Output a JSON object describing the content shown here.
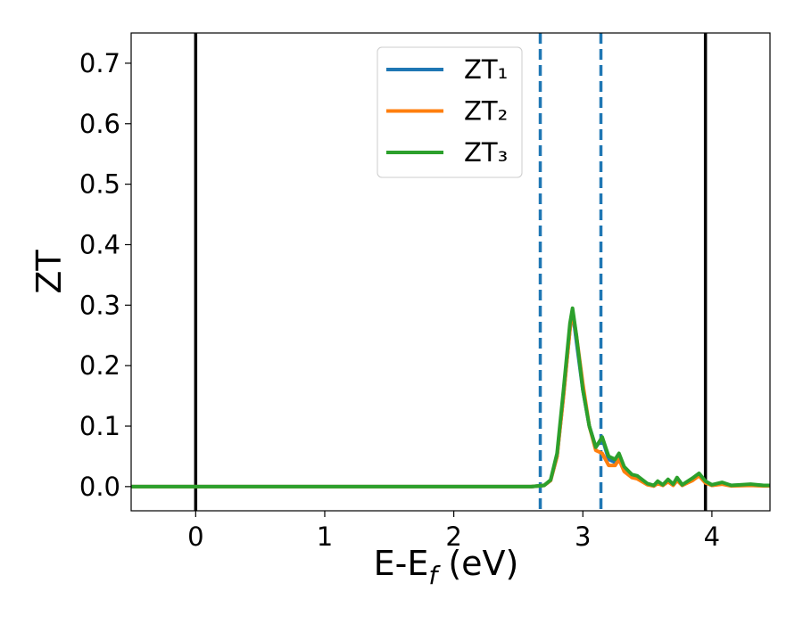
{
  "chart_data": {
    "type": "line",
    "xlabel": [
      "E-E",
      "f",
      " (eV)"
    ],
    "ylabel": "ZT",
    "xlim": [
      -0.5,
      4.45
    ],
    "ylim": [
      -0.04,
      0.75
    ],
    "xticks": [
      0,
      1,
      2,
      3,
      4
    ],
    "yticks": [
      {
        "value": 0,
        "label": "0.0"
      },
      0.1,
      0.2,
      0.3,
      0.4,
      0.5,
      0.6,
      0.7
    ],
    "legend": "upper center",
    "vlines": [
      {
        "x": 0,
        "color": "#000000",
        "style": "solid"
      },
      {
        "x": 3.95,
        "color": "#000000",
        "style": "solid"
      },
      {
        "x": 2.67,
        "color": "#1f77b4",
        "style": "dashed"
      },
      {
        "x": 3.14,
        "color": "#1f77b4",
        "style": "dashed"
      }
    ],
    "x": [
      -0.5,
      2.6,
      2.7,
      2.75,
      2.8,
      2.85,
      2.9,
      2.92,
      2.95,
      3.0,
      3.05,
      3.1,
      3.15,
      3.2,
      3.25,
      3.28,
      3.32,
      3.38,
      3.42,
      3.5,
      3.55,
      3.58,
      3.62,
      3.66,
      3.7,
      3.73,
      3.77,
      3.85,
      3.9,
      3.95,
      4.0,
      4.08,
      4.15,
      4.3,
      4.4,
      4.45
    ],
    "series": [
      {
        "name": "ZT₁",
        "color": "#1f77b4",
        "values": [
          0,
          0,
          0.002,
          0.01,
          0.05,
          0.15,
          0.26,
          0.29,
          0.24,
          0.16,
          0.1,
          0.065,
          0.08,
          0.045,
          0.04,
          0.05,
          0.03,
          0.018,
          0.015,
          0.004,
          0.001,
          0.007,
          0.002,
          0.01,
          0.003,
          0.012,
          0.002,
          0.012,
          0.02,
          0.008,
          0.002,
          0.005,
          0.002,
          0.003,
          0.002,
          0.002
        ]
      },
      {
        "name": "ZT₂",
        "color": "#ff7f0e",
        "values": [
          0,
          0,
          0.002,
          0.01,
          0.05,
          0.15,
          0.26,
          0.29,
          0.25,
          0.17,
          0.1,
          0.06,
          0.055,
          0.035,
          0.035,
          0.045,
          0.025,
          0.015,
          0.013,
          0.003,
          0.001,
          0.005,
          0.002,
          0.008,
          0.002,
          0.01,
          0.002,
          0.01,
          0.018,
          0.006,
          0.002,
          0.004,
          0.001,
          0.002,
          0.001,
          0.001
        ]
      },
      {
        "name": "ZT₃",
        "color": "#2ca02c",
        "values": [
          0,
          0,
          0.002,
          0.011,
          0.055,
          0.16,
          0.27,
          0.295,
          0.25,
          0.16,
          0.1,
          0.065,
          0.082,
          0.05,
          0.045,
          0.055,
          0.033,
          0.02,
          0.018,
          0.005,
          0.002,
          0.009,
          0.003,
          0.012,
          0.004,
          0.015,
          0.003,
          0.014,
          0.022,
          0.009,
          0.003,
          0.007,
          0.002,
          0.004,
          0.002,
          0.002
        ]
      }
    ]
  }
}
